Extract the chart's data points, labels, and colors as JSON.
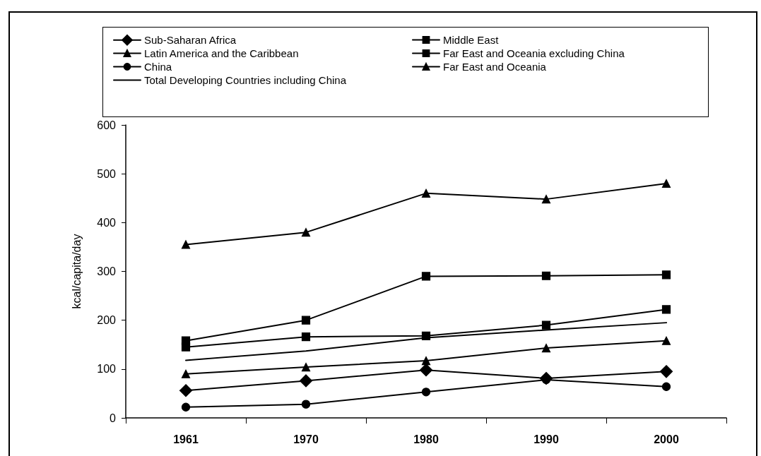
{
  "chart_data": {
    "type": "line",
    "ylabel": "kcal/capita/day",
    "categories": [
      "1961",
      "1970",
      "1980",
      "1990",
      "2000"
    ],
    "ylim": [
      0,
      600
    ],
    "yticks": [
      0,
      100,
      200,
      300,
      400,
      500,
      600
    ],
    "grid": false,
    "legend": "top",
    "line_style": "solid",
    "series": [
      {
        "name": "Sub-Saharan Africa",
        "color": "#000000",
        "marker": "diamond",
        "values": [
          56,
          76,
          98,
          81,
          95
        ]
      },
      {
        "name": "Middle East",
        "color": "#000000",
        "marker": "square",
        "values": [
          158,
          200,
          290,
          291,
          293
        ]
      },
      {
        "name": "Latin America and the Caribbean",
        "color": "#000000",
        "marker": "triangle",
        "values": [
          355,
          380,
          460,
          448,
          480
        ]
      },
      {
        "name": "Far East and Oceania excluding China",
        "color": "#000000",
        "marker": "square",
        "values": [
          145,
          166,
          168,
          190,
          222
        ]
      },
      {
        "name": "China",
        "color": "#000000",
        "marker": "circle",
        "values": [
          22,
          28,
          53,
          78,
          64
        ]
      },
      {
        "name": "Far East and Oceania",
        "color": "#000000",
        "marker": "triangle",
        "values": [
          90,
          104,
          117,
          143,
          158
        ]
      },
      {
        "name": "Total Developing Countries including China",
        "color": "#000000",
        "marker": "none",
        "values": [
          118,
          137,
          164,
          180,
          195
        ]
      }
    ]
  }
}
